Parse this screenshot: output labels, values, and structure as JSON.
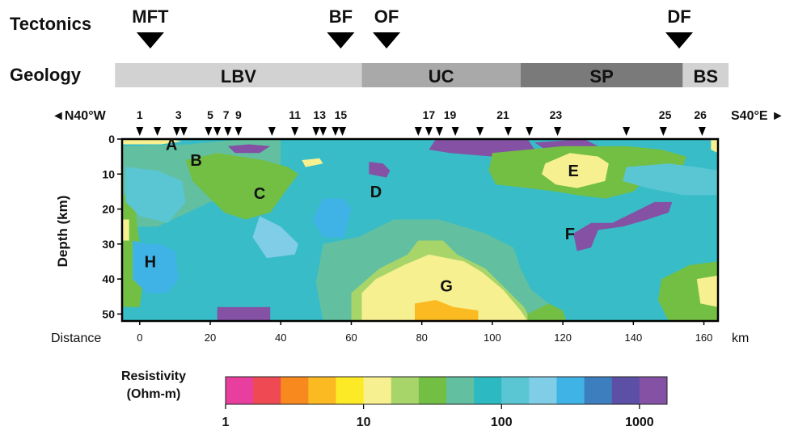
{
  "tectonics": {
    "label": "Tectonics",
    "faults": [
      {
        "name": "MFT",
        "km": 3
      },
      {
        "name": "BF",
        "km": 57
      },
      {
        "name": "OF",
        "km": 70
      },
      {
        "name": "DF",
        "km": 153
      }
    ]
  },
  "geology": {
    "label": "Geology",
    "units": [
      {
        "name": "LBV",
        "from_km": -7,
        "to_km": 63,
        "color": "#d2d2d2"
      },
      {
        "name": "UC",
        "from_km": 63,
        "to_km": 108,
        "color": "#a9a9a9"
      },
      {
        "name": "SP",
        "from_km": 108,
        "to_km": 154,
        "color": "#7a7a7a"
      },
      {
        "name": "BS",
        "from_km": 154,
        "to_km": 167,
        "color": "#d2d2d2"
      }
    ]
  },
  "profile": {
    "direction_left": "◄N40°W",
    "direction_right": "S40°E ►",
    "station_labels": [
      {
        "label": "1",
        "km": 0
      },
      {
        "label": "3",
        "km": 11
      },
      {
        "label": "5",
        "km": 20
      },
      {
        "label": "7",
        "km": 24.5
      },
      {
        "label": "9",
        "km": 28
      },
      {
        "label": "11",
        "km": 44
      },
      {
        "label": "13",
        "km": 51
      },
      {
        "label": "15",
        "km": 57
      },
      {
        "label": "17",
        "km": 82
      },
      {
        "label": "19",
        "km": 88
      },
      {
        "label": "21",
        "km": 103
      },
      {
        "label": "23",
        "km": 118
      },
      {
        "label": "25",
        "km": 149
      },
      {
        "label": "26",
        "km": 159
      }
    ],
    "station_markers_km": [
      0,
      5,
      10.5,
      12.5,
      19.5,
      22,
      25,
      28,
      37.5,
      44,
      50,
      52,
      55.5,
      57.5,
      79,
      82,
      85,
      89.5,
      96.5,
      104.5,
      110.5,
      118.5,
      138,
      148.5,
      159.5
    ]
  },
  "section": {
    "x_axis": {
      "label": "Distance",
      "unit": "km",
      "ticks": [
        0,
        20,
        40,
        60,
        80,
        100,
        120,
        140,
        160
      ],
      "range": [
        -5,
        164
      ]
    },
    "y_axis": {
      "label": "Depth (km)",
      "ticks": [
        0,
        10,
        20,
        30,
        40,
        50
      ],
      "range": [
        0,
        52
      ]
    },
    "annotations": [
      {
        "label": "A",
        "km": 9,
        "depth": 1.5
      },
      {
        "label": "B",
        "km": 16,
        "depth": 6
      },
      {
        "label": "C",
        "km": 34,
        "depth": 15.5
      },
      {
        "label": "D",
        "km": 67,
        "depth": 15
      },
      {
        "label": "E",
        "km": 123,
        "depth": 9
      },
      {
        "label": "F",
        "km": 122,
        "depth": 27
      },
      {
        "label": "G",
        "km": 87,
        "depth": 42
      },
      {
        "label": "H",
        "km": 3,
        "depth": 35
      }
    ],
    "bodies": [
      {
        "log": 1.65,
        "pts": [
          [
            -5,
            25
          ],
          [
            5,
            25
          ],
          [
            20,
            18
          ],
          [
            40,
            14
          ],
          [
            40,
            0
          ],
          [
            30,
            0
          ],
          [
            14,
            1.5
          ],
          [
            -5,
            2
          ],
          [
            -5,
            25
          ]
        ]
      },
      {
        "log": 1.45,
        "pts": [
          [
            13,
            6
          ],
          [
            22,
            4
          ],
          [
            35,
            6
          ],
          [
            42,
            8
          ],
          [
            45,
            10
          ],
          [
            42,
            14
          ],
          [
            37,
            21
          ],
          [
            30,
            23
          ],
          [
            24,
            21
          ],
          [
            20,
            17
          ],
          [
            15,
            12
          ]
        ]
      },
      {
        "log": 1.45,
        "pts": [
          [
            -5,
            16
          ],
          [
            -2,
            16
          ],
          [
            -1,
            22
          ],
          [
            0,
            30
          ],
          [
            1,
            40
          ],
          [
            0,
            48
          ],
          [
            -5,
            48
          ]
        ]
      },
      {
        "log": 2.45,
        "pts": [
          [
            -2,
            29
          ],
          [
            2,
            30
          ],
          [
            6,
            30
          ],
          [
            10,
            32
          ],
          [
            11,
            40
          ],
          [
            8,
            44
          ],
          [
            2,
            44
          ],
          [
            -2,
            40
          ]
        ]
      },
      {
        "log": 2.1,
        "pts": [
          [
            -4,
            8
          ],
          [
            5,
            9
          ],
          [
            12,
            12
          ],
          [
            13,
            18
          ],
          [
            8,
            24
          ],
          [
            0,
            22
          ],
          [
            -4,
            18
          ]
        ]
      },
      {
        "log": 2.55,
        "pts": [
          [
            52,
            17
          ],
          [
            58,
            17
          ],
          [
            60,
            20
          ],
          [
            58,
            28
          ],
          [
            52,
            28
          ],
          [
            49,
            23
          ]
        ]
      },
      {
        "log": 2.4,
        "pts": [
          [
            34,
            22
          ],
          [
            40,
            25
          ],
          [
            45,
            30
          ],
          [
            44,
            33
          ],
          [
            36,
            34
          ],
          [
            32,
            28
          ]
        ]
      },
      {
        "log": 1.6,
        "pts": [
          [
            52,
            30
          ],
          [
            62,
            28
          ],
          [
            72,
            23
          ],
          [
            85,
            23
          ],
          [
            98,
            27
          ],
          [
            106,
            31
          ],
          [
            108,
            37
          ],
          [
            111,
            43
          ],
          [
            116,
            47
          ],
          [
            119,
            52
          ],
          [
            52,
            52
          ],
          [
            50,
            41
          ]
        ]
      },
      {
        "log": 1.3,
        "pts": [
          [
            60,
            44
          ],
          [
            68,
            37
          ],
          [
            76,
            33
          ],
          [
            79,
            29
          ],
          [
            86,
            29
          ],
          [
            90,
            33
          ],
          [
            98,
            37
          ],
          [
            104,
            43
          ],
          [
            109,
            48
          ],
          [
            111,
            52
          ],
          [
            60,
            52
          ]
        ]
      },
      {
        "log": 1.0,
        "pts": [
          [
            63,
            44
          ],
          [
            67,
            40
          ],
          [
            75,
            36
          ],
          [
            82,
            33
          ],
          [
            92,
            35
          ],
          [
            97,
            38
          ],
          [
            103,
            43
          ],
          [
            108,
            49
          ],
          [
            110,
            52
          ],
          [
            63,
            52
          ]
        ]
      },
      {
        "log": 0.65,
        "pts": [
          [
            78,
            47
          ],
          [
            84,
            46
          ],
          [
            89,
            48
          ],
          [
            96,
            49
          ],
          [
            96,
            52
          ],
          [
            78,
            52
          ]
        ]
      },
      {
        "log": 3.05,
        "pts": [
          [
            84,
            0
          ],
          [
            110,
            0
          ],
          [
            112,
            3
          ],
          [
            108,
            5
          ],
          [
            100,
            5
          ],
          [
            88,
            4
          ],
          [
            82,
            3
          ]
        ]
      },
      {
        "log": 3.05,
        "pts": [
          [
            112,
            1
          ],
          [
            126,
            0
          ],
          [
            130,
            2
          ],
          [
            126,
            3
          ],
          [
            115,
            3
          ]
        ]
      },
      {
        "log": 3.05,
        "pts": [
          [
            25,
            2
          ],
          [
            31,
            1.5
          ],
          [
            37,
            2
          ],
          [
            34,
            4
          ],
          [
            27,
            4
          ]
        ]
      },
      {
        "log": 3.05,
        "pts": [
          [
            65,
            6.5
          ],
          [
            69,
            7
          ],
          [
            71,
            9
          ],
          [
            70,
            11
          ],
          [
            65,
            10
          ]
        ]
      },
      {
        "log": 3.05,
        "pts": [
          [
            22,
            48
          ],
          [
            37,
            48
          ],
          [
            37,
            52
          ],
          [
            22,
            52
          ]
        ]
      },
      {
        "log": 3.05,
        "pts": [
          [
            123,
            27
          ],
          [
            128,
            24
          ],
          [
            134,
            24
          ],
          [
            140,
            21
          ],
          [
            146,
            18
          ],
          [
            151,
            18
          ],
          [
            150,
            21
          ],
          [
            144,
            23
          ],
          [
            137,
            25
          ],
          [
            130,
            26
          ],
          [
            128,
            31
          ],
          [
            124,
            32
          ]
        ]
      },
      {
        "log": 1.45,
        "pts": [
          [
            100,
            4
          ],
          [
            120,
            2
          ],
          [
            138,
            2
          ],
          [
            148,
            3
          ],
          [
            155,
            5
          ],
          [
            154,
            8
          ],
          [
            144,
            11
          ],
          [
            140,
            15
          ],
          [
            132,
            17
          ],
          [
            124,
            16
          ],
          [
            118,
            15
          ],
          [
            110,
            14
          ],
          [
            101,
            13
          ],
          [
            99,
            9
          ]
        ]
      },
      {
        "log": 1.05,
        "pts": [
          [
            115,
            7
          ],
          [
            122,
            4
          ],
          [
            130,
            5
          ],
          [
            133,
            7
          ],
          [
            132,
            12
          ],
          [
            124,
            14
          ],
          [
            118,
            13
          ],
          [
            114,
            10
          ]
        ]
      },
      {
        "log": 2.05,
        "pts": [
          [
            138,
            8
          ],
          [
            150,
            7
          ],
          [
            158,
            8
          ],
          [
            164,
            9
          ],
          [
            164,
            16
          ],
          [
            154,
            16
          ],
          [
            144,
            14
          ],
          [
            137,
            12
          ]
        ]
      },
      {
        "log": 1.55,
        "pts": [
          [
            148,
            40
          ],
          [
            156,
            36
          ],
          [
            164,
            35
          ],
          [
            164,
            52
          ],
          [
            150,
            52
          ],
          [
            147,
            46
          ]
        ]
      },
      {
        "log": 1.05,
        "pts": [
          [
            158,
            40
          ],
          [
            164,
            39
          ],
          [
            164,
            48
          ],
          [
            159,
            47
          ]
        ]
      },
      {
        "log": 1.45,
        "pts": [
          [
            110,
            50
          ],
          [
            116,
            47
          ],
          [
            120,
            49
          ],
          [
            121,
            52
          ],
          [
            110,
            52
          ]
        ]
      },
      {
        "log": 1.05,
        "pts": [
          [
            -5,
            0
          ],
          [
            8,
            0
          ],
          [
            12,
            0.7
          ],
          [
            6,
            1.5
          ],
          [
            -5,
            1.5
          ]
        ]
      },
      {
        "log": 1.05,
        "pts": [
          [
            46,
            6
          ],
          [
            51,
            5.5
          ],
          [
            52,
            7
          ],
          [
            47,
            8
          ]
        ]
      },
      {
        "log": 1.05,
        "pts": [
          [
            162,
            0
          ],
          [
            164,
            0
          ],
          [
            164,
            4
          ],
          [
            162,
            3
          ]
        ]
      },
      {
        "log": 1.05,
        "pts": [
          [
            -5,
            23
          ],
          [
            -3,
            23
          ],
          [
            -3,
            29
          ],
          [
            -5,
            29
          ]
        ]
      }
    ]
  },
  "colorbar": {
    "title_line1": "Resistivity",
    "title_line2": "(Ohm-m)",
    "ticks": [
      {
        "label": "1",
        "log": 0
      },
      {
        "label": "10",
        "log": 1
      },
      {
        "label": "100",
        "log": 2
      },
      {
        "label": "1000",
        "log": 3
      }
    ],
    "log_min": 0,
    "log_max": 3.2,
    "colors": [
      "#e83e9e",
      "#ef4a54",
      "#f7891f",
      "#fbba21",
      "#fdea26",
      "#f7f090",
      "#a8d56a",
      "#72bf44",
      "#62c0a0",
      "#2db9c2",
      "#5ac6d3",
      "#7fcde6",
      "#3fb3e6",
      "#3d7ebf",
      "#5c50a6",
      "#8451a4"
    ]
  }
}
